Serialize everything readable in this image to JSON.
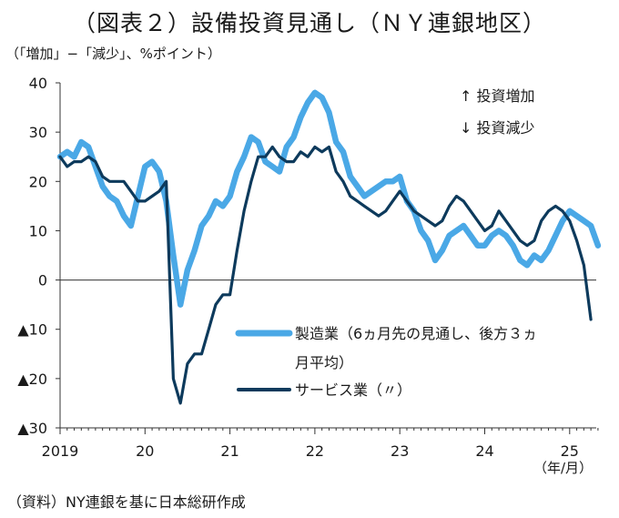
{
  "title": "（図表２）設備投資見通し（ＮＹ連銀地区）",
  "units_label": "（「増加」−「減少」、%ポイント）",
  "source_note": "（資料）NY連銀を基に日本総研作成",
  "annotations": {
    "up": "↑ 投資増加",
    "down": "↓ 投資減少"
  },
  "chart_data": {
    "type": "line",
    "title": "（図表２）設備投資見通し（ＮＹ連銀地区）",
    "ylabel": "（「増加」−「減少」、%ポイント）",
    "xlabel": "（年/月）",
    "ylim": [
      -30,
      40
    ],
    "yticks": [
      40,
      30,
      20,
      10,
      0,
      -10,
      -20,
      -30
    ],
    "ytick_labels": [
      "40",
      "30",
      "20",
      "10",
      "0",
      "▲10",
      "▲20",
      "▲30"
    ],
    "x_ticks": [
      "2019",
      "20",
      "21",
      "22",
      "23",
      "24",
      "25"
    ],
    "x_start": "2019-01",
    "grid": false,
    "zero_line": true,
    "legend_position": "lower-right inside plot",
    "series": [
      {
        "name": "製造業（6ヵ月先の見通し、後方３ヵ月平均）",
        "legend_line1": "製造業（6ヵ月先の見通し、後方３ヵ",
        "legend_line2": "月平均）",
        "color": "#4aa8e6",
        "values": [
          25,
          26,
          25,
          28,
          27,
          23,
          19,
          17,
          16,
          13,
          11,
          17,
          23,
          24,
          22,
          16,
          5,
          -5,
          2,
          6,
          11,
          13,
          16,
          15,
          17,
          22,
          25,
          29,
          28,
          24,
          23,
          22,
          27,
          29,
          33,
          36,
          38,
          37,
          34,
          28,
          26,
          21,
          19,
          17,
          18,
          19,
          20,
          20,
          21,
          16,
          14,
          10,
          8,
          4,
          6,
          9,
          10,
          11,
          9,
          7,
          7,
          9,
          10,
          9,
          7,
          4,
          3,
          5,
          4,
          6,
          9,
          12,
          14,
          13,
          12,
          11,
          7
        ]
      },
      {
        "name": "サービス業（〃）",
        "legend_line1": "サービス業（〃）",
        "color": "#0d3a5c",
        "values": [
          25,
          23,
          24,
          24,
          25,
          24,
          21,
          20,
          20,
          20,
          18,
          16,
          16,
          17,
          18,
          20,
          -20,
          -25,
          -17,
          -15,
          -15,
          -10,
          -5,
          -3,
          -3,
          6,
          14,
          20,
          25,
          25,
          27,
          25,
          24,
          24,
          26,
          25,
          27,
          26,
          27,
          22,
          20,
          17,
          16,
          15,
          14,
          13,
          14,
          16,
          18,
          16,
          14,
          13,
          12,
          11,
          12,
          15,
          17,
          16,
          14,
          12,
          10,
          11,
          14,
          12,
          10,
          8,
          7,
          8,
          12,
          14,
          15,
          14,
          12,
          8,
          3,
          -8
        ]
      }
    ]
  }
}
